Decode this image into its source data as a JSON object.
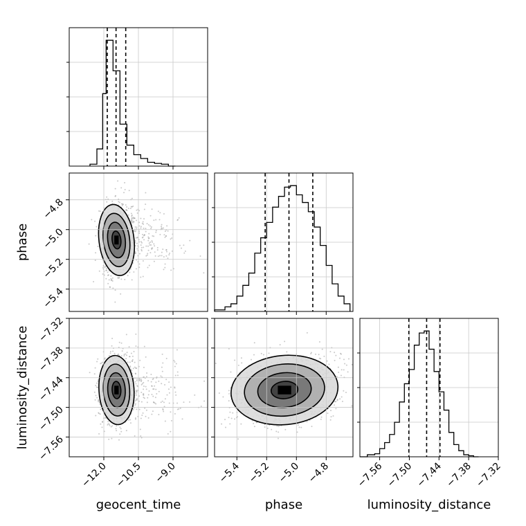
{
  "chart_data": {
    "type": "corner",
    "parameters": [
      "geocent_time",
      "phase",
      "luminosity_distance"
    ],
    "axes": {
      "geocent_time": {
        "range": [
          -13.5,
          -7.5
        ],
        "ticks": [
          -12.0,
          -10.5,
          -9.0
        ],
        "tick_labels": [
          "−12.0",
          "−10.5",
          "−9.0"
        ]
      },
      "phase": {
        "range": [
          -5.55,
          -4.62
        ],
        "ticks": [
          -5.4,
          -5.2,
          -5.0,
          -4.8
        ],
        "tick_labels": [
          "−5.4",
          "−5.2",
          "−5.0",
          "−4.8"
        ]
      },
      "luminosity_distance": {
        "range": [
          -7.6,
          -7.32
        ],
        "ticks": [
          -7.56,
          -7.5,
          -7.44,
          -7.38,
          -7.32
        ],
        "tick_labels": [
          "−7.56",
          "−7.50",
          "−7.44",
          "−7.38",
          "−7.32"
        ]
      }
    },
    "histograms": {
      "geocent_time": {
        "quantiles": [
          -11.85,
          -11.47,
          -11.05
        ],
        "edges": [
          -12.6,
          -12.3,
          -12.05,
          -11.9,
          -11.75,
          -11.6,
          -11.3,
          -11.0,
          -10.7,
          -10.4,
          -10.1,
          -9.8,
          -9.5,
          -9.2,
          -8.9
        ],
        "counts": [
          0.05,
          0.45,
          1.9,
          3.3,
          3.3,
          2.5,
          1.1,
          0.55,
          0.3,
          0.2,
          0.1,
          0.07,
          0.05,
          0.0
        ]
      },
      "phase": {
        "quantiles": [
          -5.21,
          -5.05,
          -4.89
        ],
        "edges": [
          -5.55,
          -5.52,
          -5.48,
          -5.44,
          -5.4,
          -5.36,
          -5.32,
          -5.28,
          -5.24,
          -5.2,
          -5.16,
          -5.12,
          -5.08,
          -5.04,
          -5.0,
          -4.96,
          -4.92,
          -4.88,
          -4.84,
          -4.8,
          -4.76,
          -4.72,
          -4.68,
          -4.64
        ],
        "counts": [
          0.01,
          0.01,
          0.03,
          0.05,
          0.1,
          0.17,
          0.25,
          0.38,
          0.48,
          0.58,
          0.68,
          0.75,
          0.81,
          0.82,
          0.76,
          0.71,
          0.65,
          0.55,
          0.43,
          0.3,
          0.18,
          0.1,
          0.05
        ]
      },
      "luminosity_distance": {
        "quantiles": [
          -7.501,
          -7.465,
          -7.438
        ],
        "edges": [
          -7.6,
          -7.585,
          -7.57,
          -7.56,
          -7.55,
          -7.54,
          -7.53,
          -7.52,
          -7.51,
          -7.5,
          -7.49,
          -7.48,
          -7.47,
          -7.46,
          -7.45,
          -7.44,
          -7.43,
          -7.42,
          -7.41,
          -7.4,
          -7.39,
          -7.38,
          -7.37,
          -7.36
        ],
        "counts": [
          0.0,
          0.01,
          0.015,
          0.04,
          0.07,
          0.11,
          0.17,
          0.27,
          0.36,
          0.43,
          0.55,
          0.61,
          0.62,
          0.53,
          0.42,
          0.32,
          0.23,
          0.12,
          0.06,
          0.03,
          0.01,
          0.005,
          0.0
        ]
      }
    },
    "pairs": [
      {
        "x": "geocent_time",
        "y": "phase",
        "center": [
          -11.45,
          -5.07
        ],
        "sigma": [
          0.38,
          0.12
        ],
        "rho": 0.1
      },
      {
        "x": "geocent_time",
        "y": "luminosity_distance",
        "center": [
          -11.45,
          -7.465
        ],
        "sigma": [
          0.38,
          0.035
        ],
        "rho": 0.05
      },
      {
        "x": "phase",
        "y": "luminosity_distance",
        "center": [
          -5.08,
          -7.465
        ],
        "sigma": [
          0.18,
          0.035
        ],
        "rho": 0.25
      }
    ],
    "contour_levels_sigma": [
      0.5,
      1.0,
      1.5,
      2.0
    ],
    "grid": true
  }
}
